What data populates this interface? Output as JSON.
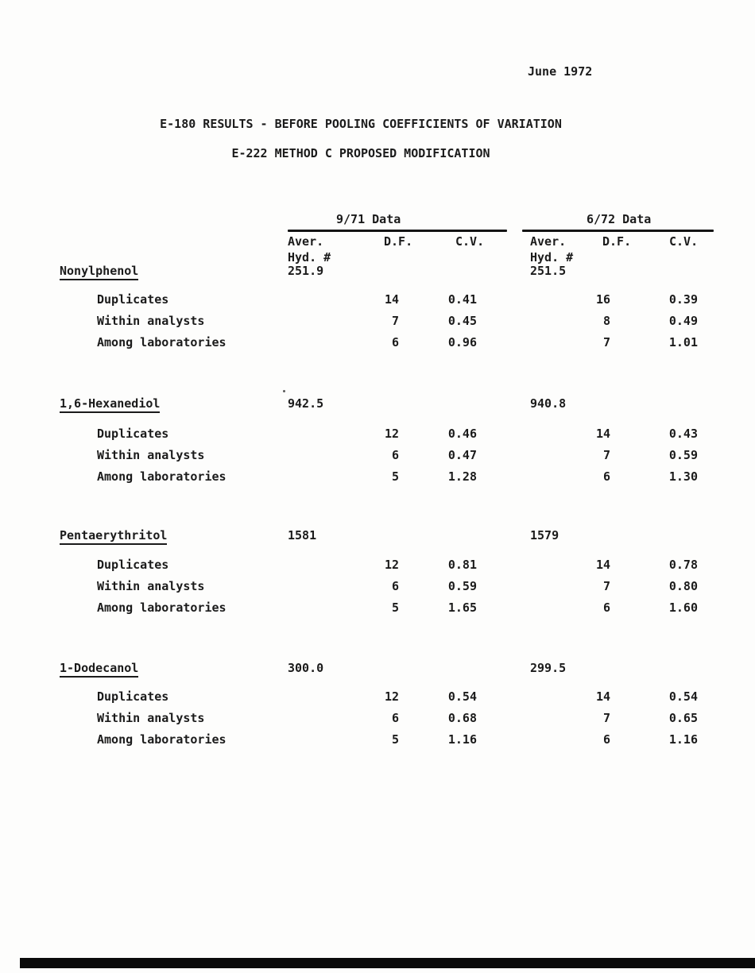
{
  "page": {
    "date": "June 1972",
    "title_line1": "E-180 RESULTS - BEFORE POOLING COEFFICIENTS OF VARIATION",
    "title_line2": "E-222 METHOD C PROPOSED MODIFICATION"
  },
  "table": {
    "group_headers": [
      "9/71 Data",
      "6/72 Data"
    ],
    "column_headers": {
      "aver_line1": "Aver.",
      "aver_line2": "Hyd. #",
      "df": "D.F.",
      "cv": "C.V."
    },
    "sections": [
      {
        "name": "Nonylphenol",
        "aver_971": "251.9",
        "aver_672": "251.5",
        "rows": [
          {
            "label": "Duplicates",
            "df_971": "14",
            "cv_971": "0.41",
            "df_672": "16",
            "cv_672": "0.39"
          },
          {
            "label": "Within analysts",
            "df_971": "7",
            "cv_971": "0.45",
            "df_672": "8",
            "cv_672": "0.49"
          },
          {
            "label": "Among laboratories",
            "df_971": "6",
            "cv_971": "0.96",
            "df_672": "7",
            "cv_672": "1.01"
          }
        ]
      },
      {
        "name": "1,6-Hexanediol",
        "aver_971": "942.5",
        "aver_672": "940.8",
        "rows": [
          {
            "label": "Duplicates",
            "df_971": "12",
            "cv_971": "0.46",
            "df_672": "14",
            "cv_672": "0.43"
          },
          {
            "label": "Within analysts",
            "df_971": "6",
            "cv_971": "0.47",
            "df_672": "7",
            "cv_672": "0.59"
          },
          {
            "label": "Among laboratories",
            "df_971": "5",
            "cv_971": "1.28",
            "df_672": "6",
            "cv_672": "1.30"
          }
        ]
      },
      {
        "name": "Pentaerythritol",
        "aver_971": "1581",
        "aver_672": "1579",
        "rows": [
          {
            "label": "Duplicates",
            "df_971": "12",
            "cv_971": "0.81",
            "df_672": "14",
            "cv_672": "0.78"
          },
          {
            "label": "Within analysts",
            "df_971": "6",
            "cv_971": "0.59",
            "df_672": "7",
            "cv_672": "0.80"
          },
          {
            "label": "Among laboratories",
            "df_971": "5",
            "cv_971": "1.65",
            "df_672": "6",
            "cv_672": "1.60"
          }
        ]
      },
      {
        "name": "1-Dodecanol",
        "aver_971": "300.0",
        "aver_672": "299.5",
        "rows": [
          {
            "label": "Duplicates",
            "df_971": "12",
            "cv_971": "0.54",
            "df_672": "14",
            "cv_672": "0.54"
          },
          {
            "label": "Within analysts",
            "df_971": "6",
            "cv_971": "0.68",
            "df_672": "7",
            "cv_672": "0.65"
          },
          {
            "label": "Among laboratories",
            "df_971": "5",
            "cv_971": "1.16",
            "df_672": "6",
            "cv_672": "1.16"
          }
        ]
      }
    ]
  }
}
